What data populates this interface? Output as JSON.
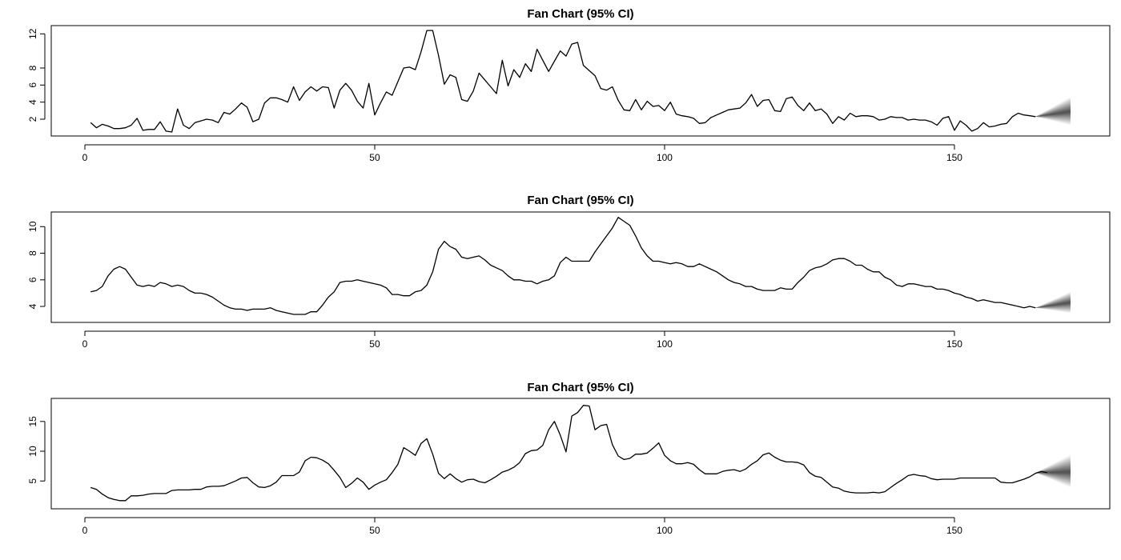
{
  "chart_data": [
    {
      "type": "line",
      "title": "Fan Chart (95% CI)",
      "xlim": [
        1,
        170
      ],
      "ylim": [
        0.5,
        12.5
      ],
      "xticks": [
        "0",
        "50",
        "100",
        "150"
      ],
      "xtick_values": [
        0,
        50,
        100,
        150
      ],
      "yticks": [
        "2",
        "4",
        "6",
        "8",
        "12"
      ],
      "ytick_values": [
        2,
        4,
        6,
        8,
        12
      ],
      "series": [
        {
          "x_start": 1,
          "values": [
            1.6,
            1.0,
            1.4,
            1.2,
            0.9,
            0.9,
            1.0,
            1.3,
            2.1,
            0.7,
            0.8,
            0.8,
            1.7,
            0.6,
            0.5,
            3.2,
            1.3,
            0.9,
            1.6,
            1.8,
            2.0,
            1.9,
            1.6,
            2.8,
            2.6,
            3.2,
            3.9,
            3.4,
            1.7,
            2.0,
            3.9,
            4.5,
            4.5,
            4.3,
            4.0,
            5.8,
            4.2,
            5.2,
            5.8,
            5.3,
            5.8,
            5.7,
            3.3,
            5.4,
            6.2,
            5.4,
            4.1,
            3.3,
            6.2,
            2.5,
            3.9,
            5.2,
            4.8,
            6.4,
            8.0,
            8.1,
            7.8,
            9.9,
            12.4,
            12.4,
            9.5,
            6.1,
            7.2,
            6.9,
            4.3,
            4.1,
            5.3,
            7.4,
            6.6,
            5.8,
            5.0,
            8.9,
            5.9,
            7.8,
            6.9,
            8.5,
            7.6,
            10.2,
            8.9,
            7.6,
            8.8,
            10.0,
            9.4,
            10.8,
            11.0,
            8.3,
            7.7,
            7.1,
            5.6,
            5.4,
            5.8,
            4.2,
            3.1,
            3.0,
            4.3,
            3.1,
            4.1,
            3.5,
            3.6,
            3.0,
            4.0,
            2.6,
            2.4,
            2.3,
            2.1,
            1.5,
            1.6,
            2.2,
            2.5,
            2.8,
            3.1,
            3.2,
            3.3,
            3.9,
            4.9,
            3.5,
            4.2,
            4.3,
            3.0,
            2.9,
            4.4,
            4.6,
            3.6,
            3.0,
            3.9,
            3.0,
            3.2,
            2.6,
            1.5,
            2.3,
            1.9,
            2.7,
            2.3,
            2.4,
            2.4,
            2.3,
            1.9,
            2.0,
            2.3,
            2.2,
            2.2,
            1.9,
            2.0,
            1.9,
            1.9,
            1.7,
            1.3,
            2.1,
            2.3,
            0.7,
            1.8,
            1.3,
            0.6,
            0.9,
            1.6,
            1.1,
            1.2,
            1.4,
            1.5,
            2.3,
            2.7,
            2.5,
            2.4,
            2.3
          ]
        }
      ],
      "fan": {
        "x_start": 164,
        "x_end": 170,
        "start": 2.3,
        "center_end": 2.9,
        "lower_end": 1.3,
        "upper_end": 4.6
      }
    },
    {
      "type": "line",
      "title": "Fan Chart (95% CI)",
      "xlim": [
        1,
        170
      ],
      "ylim": [
        3.1,
        10.8
      ],
      "xticks": [
        "0",
        "50",
        "100",
        "150"
      ],
      "xtick_values": [
        0,
        50,
        100,
        150
      ],
      "yticks": [
        "4",
        "6",
        "8",
        "10"
      ],
      "ytick_values": [
        4,
        6,
        8,
        10
      ],
      "series": [
        {
          "x_start": 1,
          "values": [
            5.1,
            5.2,
            5.5,
            6.3,
            6.8,
            7.0,
            6.8,
            6.2,
            5.6,
            5.5,
            5.6,
            5.5,
            5.8,
            5.7,
            5.5,
            5.6,
            5.5,
            5.2,
            5.0,
            5.0,
            4.9,
            4.7,
            4.4,
            4.1,
            3.9,
            3.8,
            3.8,
            3.7,
            3.8,
            3.8,
            3.8,
            3.9,
            3.7,
            3.6,
            3.5,
            3.4,
            3.4,
            3.4,
            3.6,
            3.6,
            4.1,
            4.7,
            5.1,
            5.8,
            5.9,
            5.9,
            6.0,
            5.9,
            5.8,
            5.7,
            5.6,
            5.4,
            4.9,
            4.9,
            4.8,
            4.8,
            5.1,
            5.2,
            5.6,
            6.6,
            8.3,
            8.9,
            8.5,
            8.3,
            7.7,
            7.6,
            7.7,
            7.8,
            7.5,
            7.1,
            6.9,
            6.7,
            6.3,
            6.0,
            6.0,
            5.9,
            5.9,
            5.7,
            5.9,
            6.0,
            6.3,
            7.3,
            7.7,
            7.4,
            7.4,
            7.4,
            7.4,
            8.1,
            8.7,
            9.3,
            9.9,
            10.7,
            10.4,
            10.1,
            9.3,
            8.4,
            7.8,
            7.4,
            7.4,
            7.3,
            7.2,
            7.3,
            7.2,
            7.0,
            7.0,
            7.2,
            7.0,
            6.8,
            6.6,
            6.3,
            6.0,
            5.8,
            5.7,
            5.5,
            5.5,
            5.3,
            5.2,
            5.2,
            5.2,
            5.4,
            5.3,
            5.3,
            5.8,
            6.2,
            6.7,
            6.9,
            7.0,
            7.2,
            7.5,
            7.6,
            7.6,
            7.4,
            7.1,
            7.1,
            6.8,
            6.6,
            6.6,
            6.2,
            6.0,
            5.6,
            5.5,
            5.7,
            5.7,
            5.6,
            5.5,
            5.5,
            5.3,
            5.3,
            5.2,
            5.0,
            4.9,
            4.7,
            4.6,
            4.4,
            4.5,
            4.4,
            4.3,
            4.3,
            4.2,
            4.1,
            4.0,
            3.9,
            4.0,
            3.9
          ]
        }
      ],
      "fan": {
        "x_start": 164,
        "x_end": 170,
        "start": 3.9,
        "center_end": 4.3,
        "lower_end": 3.5,
        "upper_end": 5.1
      }
    },
    {
      "type": "line",
      "title": "Fan Chart (95% CI)",
      "xlim": [
        1,
        170
      ],
      "ylim": [
        1.0,
        18.2
      ],
      "xticks": [
        "0",
        "50",
        "100",
        "150"
      ],
      "xtick_values": [
        0,
        50,
        100,
        150
      ],
      "yticks": [
        "5",
        "10",
        "15"
      ],
      "ytick_values": [
        5,
        10,
        15
      ],
      "series": [
        {
          "x_start": 1,
          "values": [
            3.9,
            3.6,
            2.8,
            2.2,
            1.9,
            1.7,
            1.7,
            2.5,
            2.5,
            2.6,
            2.8,
            2.9,
            2.9,
            2.9,
            3.4,
            3.5,
            3.5,
            3.5,
            3.6,
            3.6,
            4.0,
            4.1,
            4.1,
            4.2,
            4.6,
            5.0,
            5.5,
            5.6,
            4.7,
            4.0,
            3.9,
            4.2,
            4.8,
            5.9,
            5.9,
            5.9,
            6.5,
            8.4,
            9.0,
            8.9,
            8.5,
            7.9,
            6.8,
            5.6,
            3.9,
            4.6,
            5.5,
            4.8,
            3.6,
            4.3,
            4.8,
            5.2,
            6.4,
            7.8,
            10.6,
            10.0,
            9.3,
            11.3,
            12.1,
            9.5,
            6.3,
            5.4,
            6.2,
            5.4,
            4.8,
            5.2,
            5.3,
            4.9,
            4.7,
            5.2,
            5.8,
            6.5,
            6.8,
            7.3,
            8.1,
            9.6,
            10.1,
            10.2,
            11.0,
            13.6,
            15.0,
            12.7,
            9.9,
            15.9,
            16.5,
            17.7,
            17.6,
            13.6,
            14.3,
            14.5,
            11.1,
            9.2,
            8.6,
            8.8,
            9.5,
            9.5,
            9.7,
            10.5,
            11.4,
            9.3,
            8.4,
            7.9,
            7.9,
            8.1,
            7.8,
            6.9,
            6.2,
            6.2,
            6.2,
            6.6,
            6.8,
            6.9,
            6.6,
            7.0,
            7.8,
            8.4,
            9.4,
            9.7,
            9.0,
            8.5,
            8.2,
            8.2,
            8.1,
            7.7,
            6.4,
            5.8,
            5.6,
            4.8,
            4.0,
            3.8,
            3.3,
            3.1,
            3.0,
            3.0,
            3.0,
            3.1,
            3.0,
            3.2,
            3.9,
            4.6,
            5.2,
            5.9,
            6.1,
            5.9,
            5.8,
            5.4,
            5.2,
            5.3,
            5.3,
            5.3,
            5.5,
            5.5,
            5.5,
            5.5,
            5.5,
            5.5,
            5.5,
            4.8,
            4.7,
            4.7,
            5.0,
            5.3,
            5.7,
            6.3,
            6.6,
            6.4
          ]
        }
      ],
      "fan": {
        "x_start": 164,
        "x_end": 170,
        "start": 6.4,
        "center_end": 6.5,
        "lower_end": 3.9,
        "upper_end": 9.4
      }
    }
  ]
}
